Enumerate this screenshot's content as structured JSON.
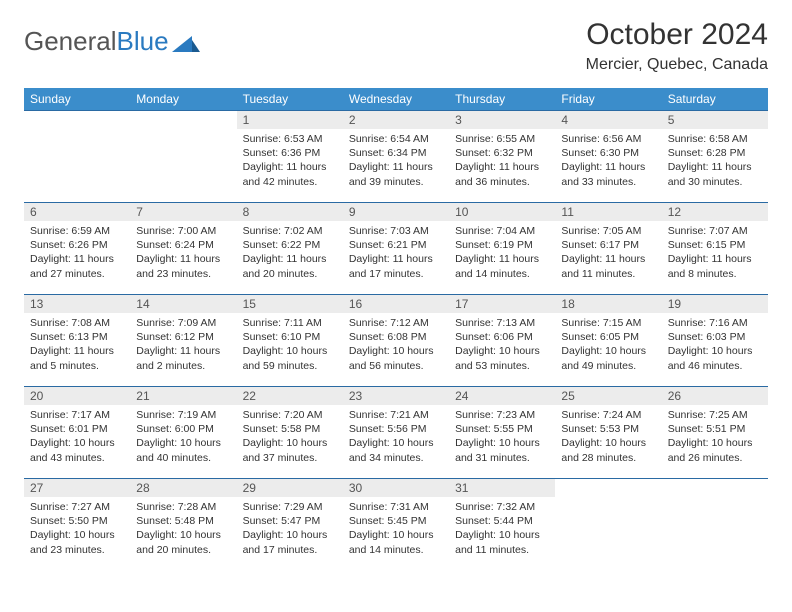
{
  "logo": {
    "word1": "General",
    "word2": "Blue"
  },
  "title": "October 2024",
  "location": "Mercier, Quebec, Canada",
  "colors": {
    "header_bg": "#3b8dcb",
    "header_text": "#ffffff",
    "divider": "#2a6aa3",
    "daynum_bg": "#ececec",
    "body_text": "#333333",
    "logo_gray": "#555555",
    "logo_blue": "#2a7ac0",
    "page_bg": "#ffffff"
  },
  "day_headers": [
    "Sunday",
    "Monday",
    "Tuesday",
    "Wednesday",
    "Thursday",
    "Friday",
    "Saturday"
  ],
  "weeks": [
    [
      null,
      null,
      {
        "n": "1",
        "sr": "6:53 AM",
        "ss": "6:36 PM",
        "dl": "11 hours and 42 minutes."
      },
      {
        "n": "2",
        "sr": "6:54 AM",
        "ss": "6:34 PM",
        "dl": "11 hours and 39 minutes."
      },
      {
        "n": "3",
        "sr": "6:55 AM",
        "ss": "6:32 PM",
        "dl": "11 hours and 36 minutes."
      },
      {
        "n": "4",
        "sr": "6:56 AM",
        "ss": "6:30 PM",
        "dl": "11 hours and 33 minutes."
      },
      {
        "n": "5",
        "sr": "6:58 AM",
        "ss": "6:28 PM",
        "dl": "11 hours and 30 minutes."
      }
    ],
    [
      {
        "n": "6",
        "sr": "6:59 AM",
        "ss": "6:26 PM",
        "dl": "11 hours and 27 minutes."
      },
      {
        "n": "7",
        "sr": "7:00 AM",
        "ss": "6:24 PM",
        "dl": "11 hours and 23 minutes."
      },
      {
        "n": "8",
        "sr": "7:02 AM",
        "ss": "6:22 PM",
        "dl": "11 hours and 20 minutes."
      },
      {
        "n": "9",
        "sr": "7:03 AM",
        "ss": "6:21 PM",
        "dl": "11 hours and 17 minutes."
      },
      {
        "n": "10",
        "sr": "7:04 AM",
        "ss": "6:19 PM",
        "dl": "11 hours and 14 minutes."
      },
      {
        "n": "11",
        "sr": "7:05 AM",
        "ss": "6:17 PM",
        "dl": "11 hours and 11 minutes."
      },
      {
        "n": "12",
        "sr": "7:07 AM",
        "ss": "6:15 PM",
        "dl": "11 hours and 8 minutes."
      }
    ],
    [
      {
        "n": "13",
        "sr": "7:08 AM",
        "ss": "6:13 PM",
        "dl": "11 hours and 5 minutes."
      },
      {
        "n": "14",
        "sr": "7:09 AM",
        "ss": "6:12 PM",
        "dl": "11 hours and 2 minutes."
      },
      {
        "n": "15",
        "sr": "7:11 AM",
        "ss": "6:10 PM",
        "dl": "10 hours and 59 minutes."
      },
      {
        "n": "16",
        "sr": "7:12 AM",
        "ss": "6:08 PM",
        "dl": "10 hours and 56 minutes."
      },
      {
        "n": "17",
        "sr": "7:13 AM",
        "ss": "6:06 PM",
        "dl": "10 hours and 53 minutes."
      },
      {
        "n": "18",
        "sr": "7:15 AM",
        "ss": "6:05 PM",
        "dl": "10 hours and 49 minutes."
      },
      {
        "n": "19",
        "sr": "7:16 AM",
        "ss": "6:03 PM",
        "dl": "10 hours and 46 minutes."
      }
    ],
    [
      {
        "n": "20",
        "sr": "7:17 AM",
        "ss": "6:01 PM",
        "dl": "10 hours and 43 minutes."
      },
      {
        "n": "21",
        "sr": "7:19 AM",
        "ss": "6:00 PM",
        "dl": "10 hours and 40 minutes."
      },
      {
        "n": "22",
        "sr": "7:20 AM",
        "ss": "5:58 PM",
        "dl": "10 hours and 37 minutes."
      },
      {
        "n": "23",
        "sr": "7:21 AM",
        "ss": "5:56 PM",
        "dl": "10 hours and 34 minutes."
      },
      {
        "n": "24",
        "sr": "7:23 AM",
        "ss": "5:55 PM",
        "dl": "10 hours and 31 minutes."
      },
      {
        "n": "25",
        "sr": "7:24 AM",
        "ss": "5:53 PM",
        "dl": "10 hours and 28 minutes."
      },
      {
        "n": "26",
        "sr": "7:25 AM",
        "ss": "5:51 PM",
        "dl": "10 hours and 26 minutes."
      }
    ],
    [
      {
        "n": "27",
        "sr": "7:27 AM",
        "ss": "5:50 PM",
        "dl": "10 hours and 23 minutes."
      },
      {
        "n": "28",
        "sr": "7:28 AM",
        "ss": "5:48 PM",
        "dl": "10 hours and 20 minutes."
      },
      {
        "n": "29",
        "sr": "7:29 AM",
        "ss": "5:47 PM",
        "dl": "10 hours and 17 minutes."
      },
      {
        "n": "30",
        "sr": "7:31 AM",
        "ss": "5:45 PM",
        "dl": "10 hours and 14 minutes."
      },
      {
        "n": "31",
        "sr": "7:32 AM",
        "ss": "5:44 PM",
        "dl": "10 hours and 11 minutes."
      },
      null,
      null
    ]
  ],
  "labels": {
    "sunrise": "Sunrise:",
    "sunset": "Sunset:",
    "daylight": "Daylight:"
  }
}
